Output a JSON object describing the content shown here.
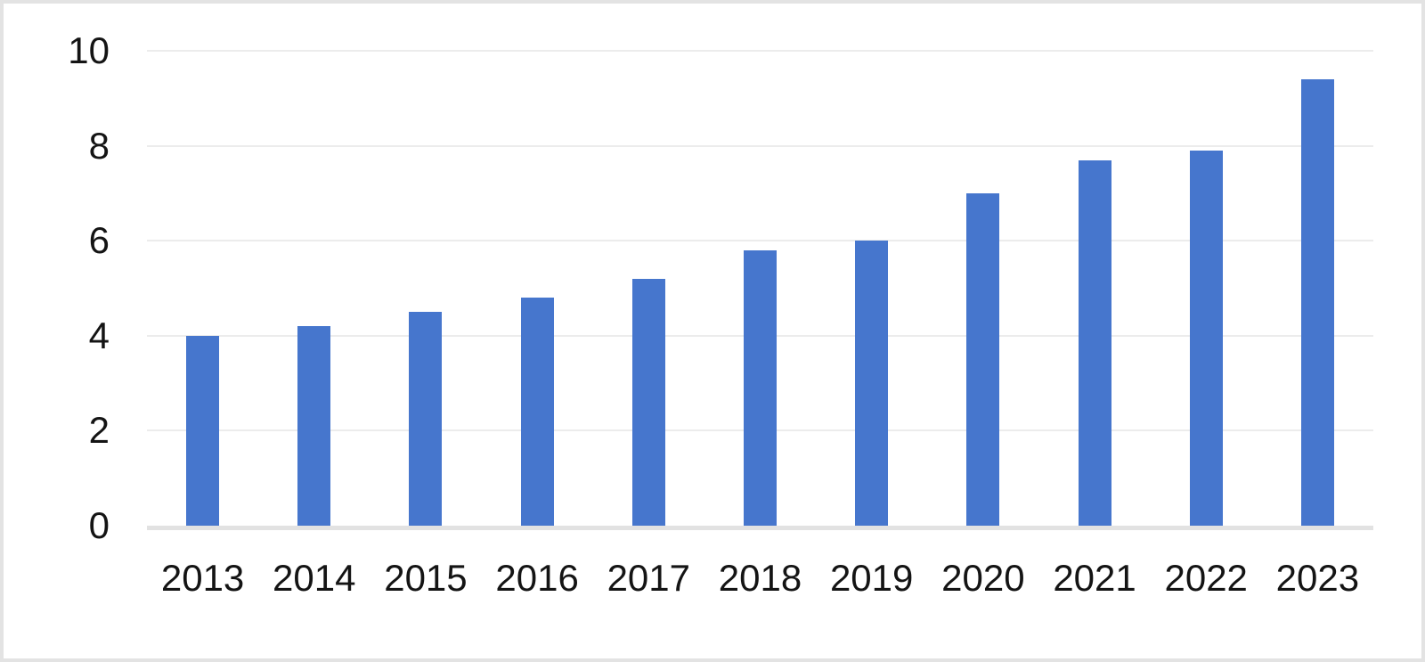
{
  "chart_data": {
    "type": "bar",
    "title": "",
    "xlabel": "",
    "ylabel": "",
    "categories": [
      "2013",
      "2014",
      "2015",
      "2016",
      "2017",
      "2018",
      "2019",
      "2020",
      "2021",
      "2022",
      "2023"
    ],
    "values": [
      4.0,
      4.2,
      4.5,
      4.8,
      5.2,
      5.8,
      6.0,
      7.0,
      7.7,
      7.9,
      9.4
    ],
    "ylim": [
      0,
      10
    ],
    "yticks": [
      0,
      2,
      4,
      6,
      8,
      10
    ],
    "grid": true,
    "legend": false,
    "colors": {
      "bar": "#4676cd",
      "gridline": "#ececec",
      "axis_line": "#e2e2e2",
      "text": "#141414",
      "background": "#ffffff",
      "frame_border": "#e3e3e3"
    }
  }
}
